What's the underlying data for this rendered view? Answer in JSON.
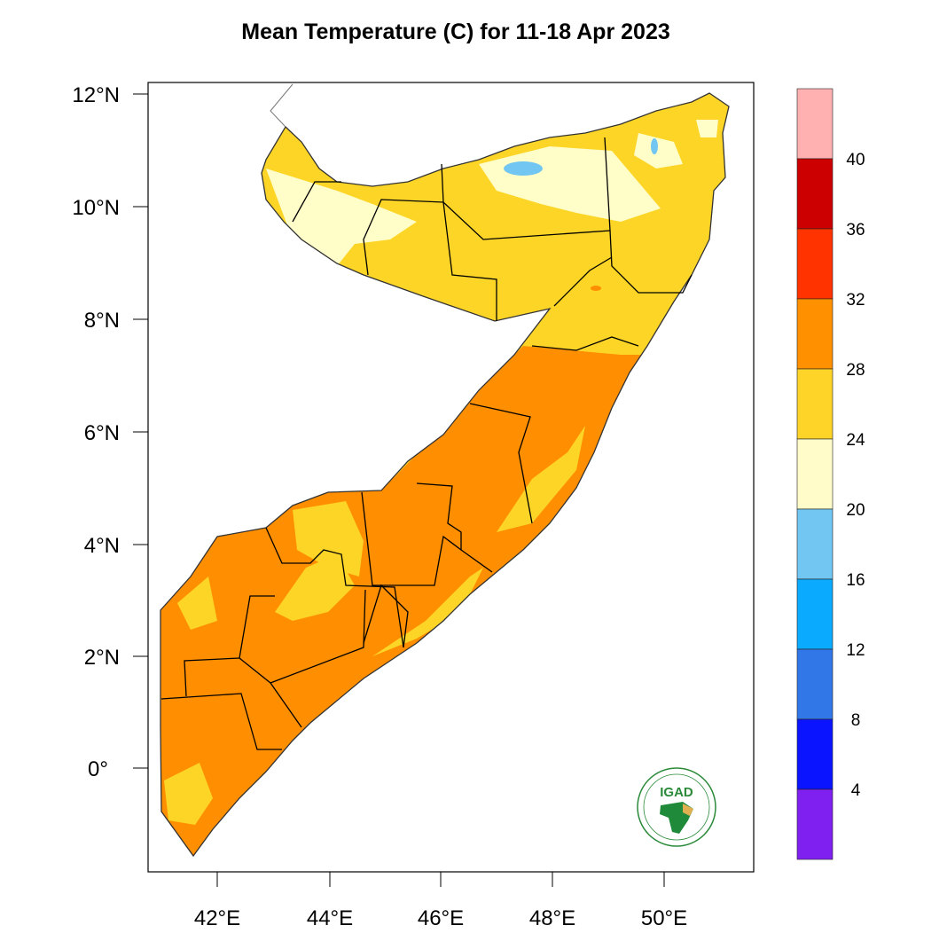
{
  "title": "Mean Temperature (C) for 11-18 Apr 2023",
  "axes": {
    "lat_ticks": [
      "12°N",
      "10°N",
      "8°N",
      "6°N",
      "4°N",
      "2°N",
      "0°"
    ],
    "lon_ticks": [
      "42°E",
      "44°E",
      "46°E",
      "48°E",
      "50°E"
    ]
  },
  "colorbar": {
    "labels": [
      "40",
      "36",
      "32",
      "28",
      "24",
      "20",
      "16",
      "12",
      "8",
      "4"
    ],
    "colors": [
      "#FFB1B1",
      "#CC0000",
      "#FF3300",
      "#FF9000",
      "#FFD428",
      "#FFFCC9",
      "#72C6F2",
      "#0AAAFF",
      "#3277E8",
      "#0A14FF",
      "#8020F0"
    ]
  },
  "map_colors": {
    "orange": "#FF8E00",
    "yellow": "#FDD527",
    "light_yellow": "#FFFDC8",
    "light_blue": "#72C6F2"
  },
  "logo": {
    "text": "IGAD"
  }
}
